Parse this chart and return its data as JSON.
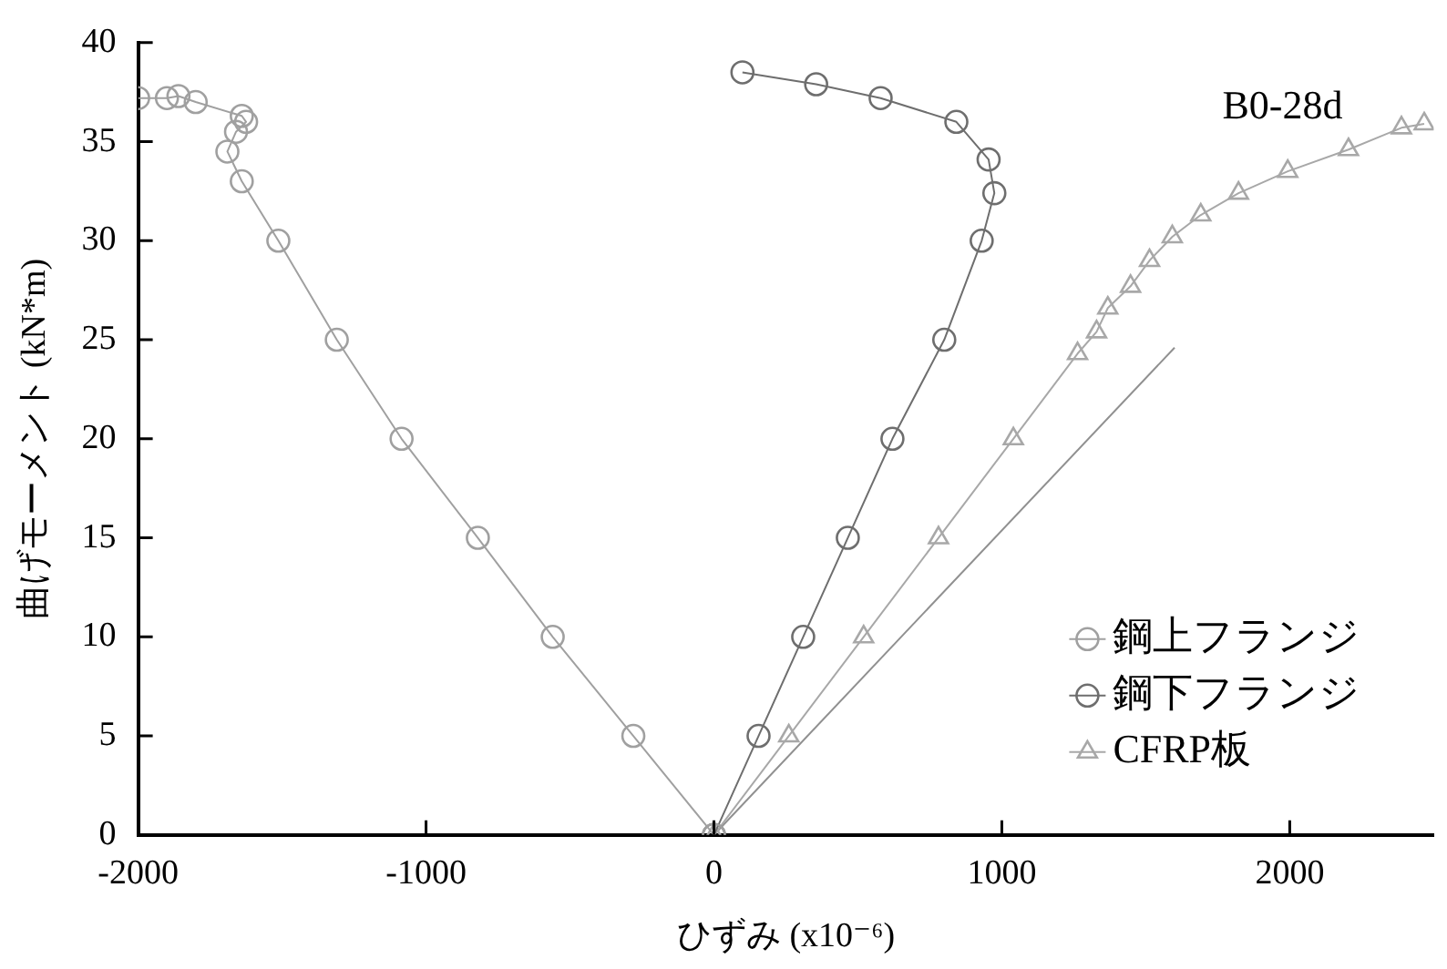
{
  "chart_data": {
    "type": "line",
    "xlabel": "ひずみ (x10⁻⁶)",
    "ylabel": "曲げモーメント (kN*m)",
    "annotations": [
      "B0-28d"
    ],
    "xlim": [
      -2000,
      2500
    ],
    "xticks": [
      -2000,
      -1000,
      0,
      1000,
      2000
    ],
    "ylim": [
      0,
      40
    ],
    "yticks": [
      0,
      5,
      10,
      15,
      20,
      25,
      30,
      35,
      40
    ],
    "grid": false,
    "legend": "bottom right",
    "line_style": "solid",
    "series": [
      {
        "name": "鋼上フランジ",
        "color": "#a0a0a0",
        "marker": "circle",
        "x": [
          0,
          -280,
          -560,
          -820,
          -1085,
          -1310,
          -1513,
          -1640,
          -1690,
          -1660,
          -1625,
          -1640,
          -1800,
          -1860,
          -1900,
          -2000
        ],
        "values": [
          0,
          5,
          10,
          15,
          20,
          25,
          30,
          33,
          34.5,
          35.5,
          36,
          36.3,
          37,
          37.3,
          37.2,
          37.2
        ]
      },
      {
        "name": "鋼下フランジ",
        "color": "#6e6e6e",
        "marker": "circle",
        "x": [
          0,
          155,
          310,
          465,
          620,
          800,
          930,
          974,
          954,
          842,
          579,
          355,
          99
        ],
        "values": [
          0,
          5,
          10,
          15,
          20,
          25,
          30,
          32.4,
          34.1,
          36,
          37.2,
          37.9,
          38.5
        ]
      },
      {
        "name": "CFRP板",
        "color": "#a8a8a8",
        "marker": "triangle",
        "x": [
          0,
          260,
          520,
          780,
          1040,
          1263,
          1329,
          1368,
          1447,
          1513,
          1592,
          1691,
          1822,
          1993,
          2204,
          2388,
          2467
        ],
        "values": [
          0,
          5,
          10,
          15,
          20,
          24.3,
          25.4,
          26.6,
          27.7,
          29,
          30.2,
          31.3,
          32.4,
          33.5,
          34.6,
          35.7,
          35.9
        ]
      },
      {
        "color": "#909090",
        "marker": "none",
        "x": [
          0,
          1600
        ],
        "values": [
          0,
          24.6
        ]
      }
    ]
  }
}
